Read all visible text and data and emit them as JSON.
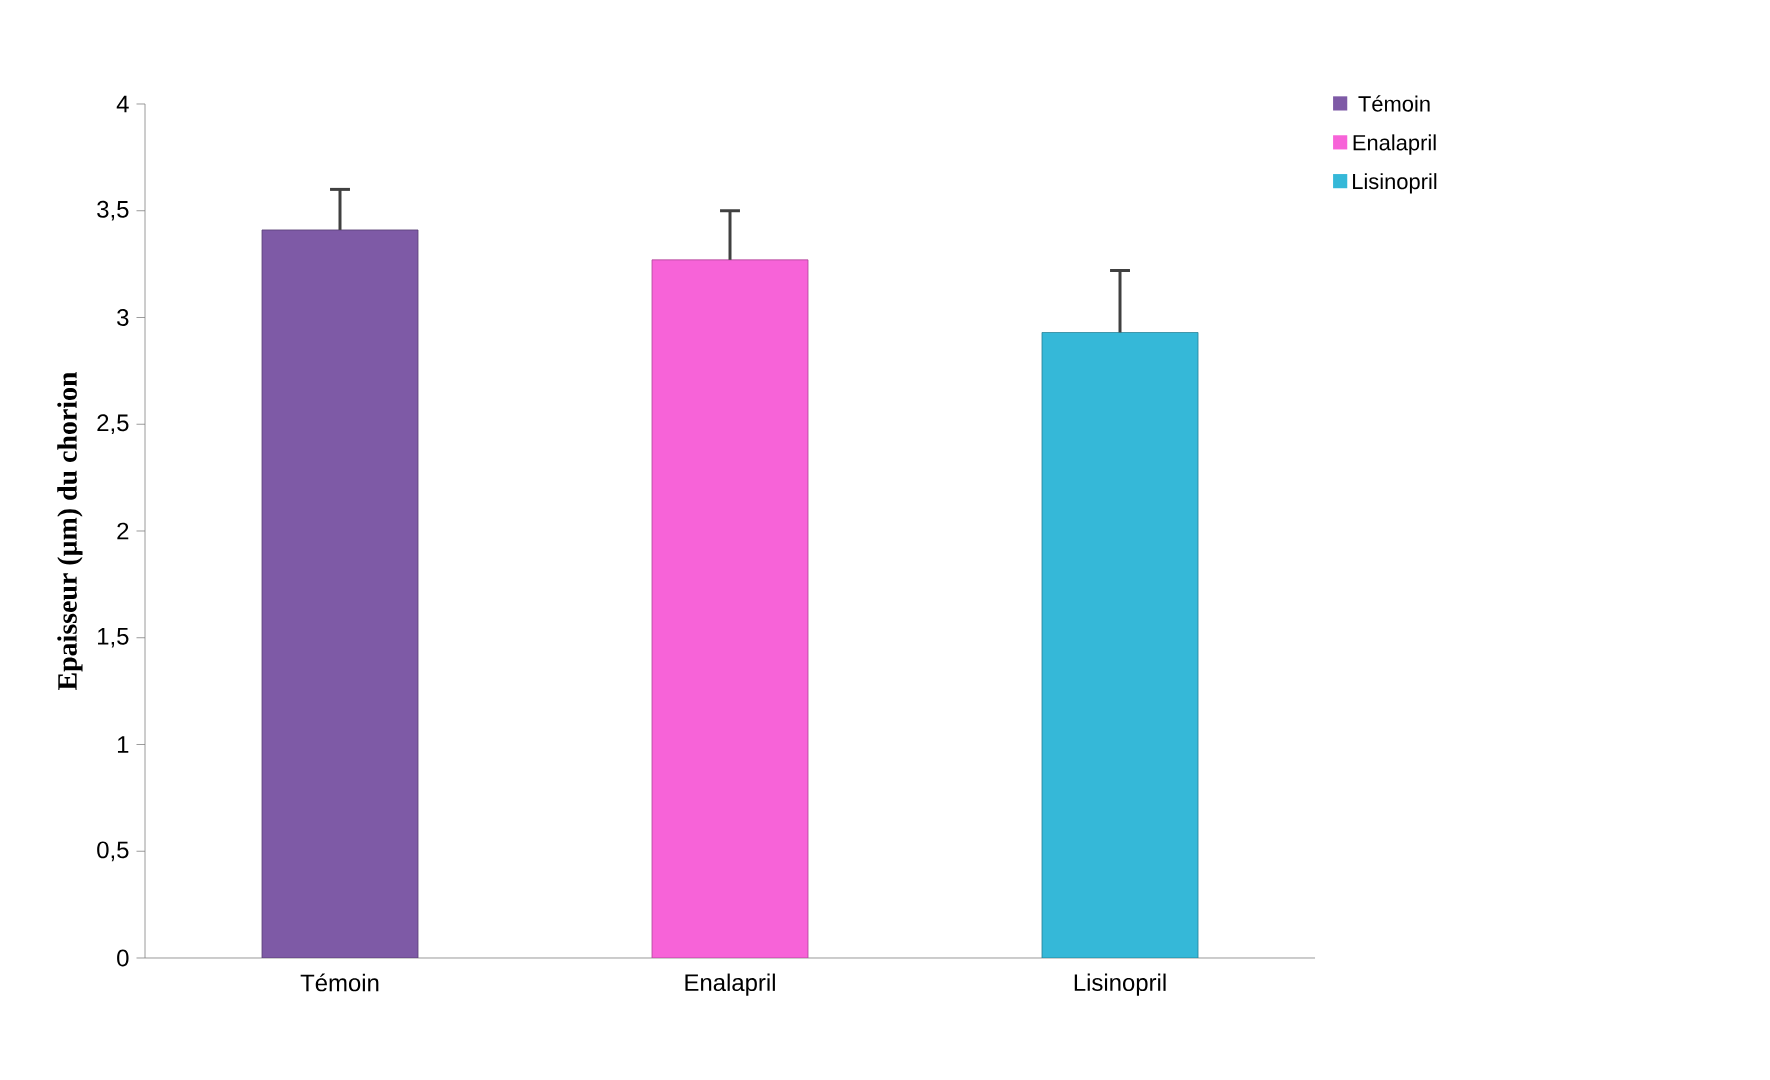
{
  "chart_data": {
    "type": "bar",
    "ylabel": "Epaisseur (µm) du chorion",
    "categories": [
      "Témoin",
      "Enalapril",
      "Lisinopril"
    ],
    "series": [
      {
        "name": "Témoin",
        "color": "#7e5aa6",
        "values": [
          3.41,
          null,
          null
        ],
        "errors": [
          [
            3.41,
            3.6
          ],
          null,
          null
        ]
      },
      {
        "name": "Enalapril",
        "color": "#f763d8",
        "values": [
          null,
          3.27,
          null
        ],
        "errors": [
          null,
          [
            3.27,
            3.5
          ],
          null
        ]
      },
      {
        "name": "Lisinopril",
        "color": "#35b8d8",
        "values": [
          null,
          null,
          2.93
        ],
        "errors": [
          null,
          null,
          [
            2.93,
            3.22
          ]
        ]
      }
    ],
    "ylim": [
      0,
      4
    ],
    "yticks": [
      0,
      {
        "value": 0.5,
        "label": "0,5"
      },
      1,
      {
        "value": 1.5,
        "label": "1,5"
      },
      2,
      {
        "value": 2.5,
        "label": "2,5"
      },
      3,
      {
        "value": 3.5,
        "label": "3,5"
      },
      4
    ],
    "legend": "top right",
    "grid": false
  }
}
